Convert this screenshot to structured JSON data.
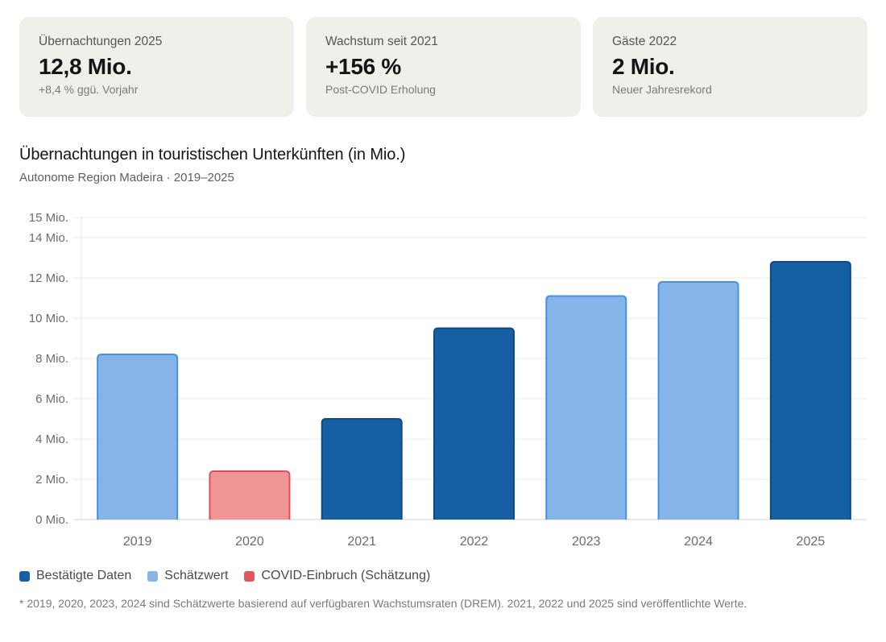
{
  "cards": [
    {
      "label": "Übernachtungen 2025",
      "value": "12,8 Mio.",
      "sub": "+8,4 % ggü. Vorjahr"
    },
    {
      "label": "Wachstum seit 2021",
      "value": "+156 %",
      "sub": "Post-COVID Erholung"
    },
    {
      "label": "Gäste 2022",
      "value": "2 Mio.",
      "sub": "Neuer Jahresrekord"
    }
  ],
  "colors": {
    "confirmed": "#175fa5",
    "confirmed_border": "#0f4a85",
    "estimate": "#85b5e8",
    "estimate_border": "#4a90dc",
    "covid": "#ef9595",
    "covid_border": "#e14f55",
    "covid_legend": "#e5545a"
  },
  "legend": [
    {
      "label": "Bestätigte Daten",
      "kind": "confirmed"
    },
    {
      "label": "Schätzwert",
      "kind": "estimate"
    },
    {
      "label": "COVID-Einbruch (Schätzung)",
      "kind": "covid"
    }
  ],
  "footnote": "* 2019, 2020, 2023, 2024 sind Schätzwerte basierend auf verfügbaren Wachstumsraten (DREM). 2021, 2022 und 2025 sind veröffentlichte Werte.",
  "chart_data": {
    "type": "bar",
    "title": "Übernachtungen in touristischen Unterkünften (in Mio.)",
    "subtitle": "Autonome Region Madeira · 2019–2025",
    "xlabel": "",
    "ylabel": "",
    "categories": [
      "2019",
      "2020",
      "2021",
      "2022",
      "2023",
      "2024",
      "2025"
    ],
    "values": [
      8.2,
      2.4,
      5.0,
      9.5,
      11.1,
      11.8,
      12.8
    ],
    "kinds": [
      "estimate",
      "covid",
      "confirmed",
      "confirmed",
      "estimate",
      "estimate",
      "confirmed"
    ],
    "ylim": [
      0,
      15
    ],
    "yticks": [
      0,
      2,
      4,
      6,
      8,
      10,
      12,
      14,
      15
    ],
    "ytick_labels": [
      "0 Mio.",
      "2 Mio.",
      "4 Mio.",
      "6 Mio.",
      "8 Mio.",
      "10 Mio.",
      "12 Mio.",
      "14 Mio.",
      "15 Mio."
    ],
    "grid": true,
    "legend_position": "bottom-left"
  }
}
